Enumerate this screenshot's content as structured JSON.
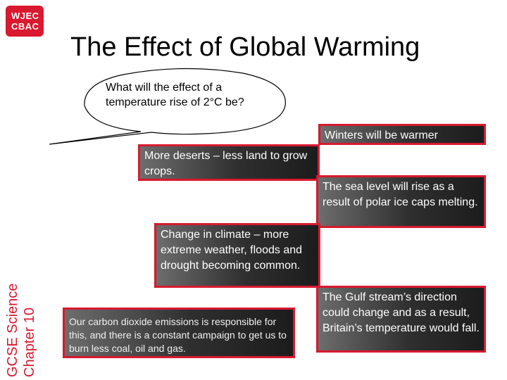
{
  "logo": {
    "line1": "WJEC",
    "line2": "CBAC"
  },
  "title": "The Effect of Global Warming",
  "side_label": {
    "line1": "GCSE Science",
    "line2": "Chapter 10"
  },
  "bubble": {
    "question": "What will the effect of a temperature rise of  2°C be?"
  },
  "boxes": {
    "winters": "Winters will be warmer",
    "deserts": "More deserts – less land to grow crops.",
    "sea_level": "The sea level will rise as a result of polar ice caps melting.",
    "climate": "Change in climate – more extreme weather, floods and drought becoming common.",
    "co2": "Our carbon dioxide emissions is responsible for this, and there is a constant campaign to get us to burn less coal, oil and gas.",
    "gulf_stream": "The Gulf stream’s direction could change and as a result, Britain’s temperature would fall."
  },
  "colors": {
    "accent": "#d8192f",
    "box_dark": "#2f2f2f"
  }
}
